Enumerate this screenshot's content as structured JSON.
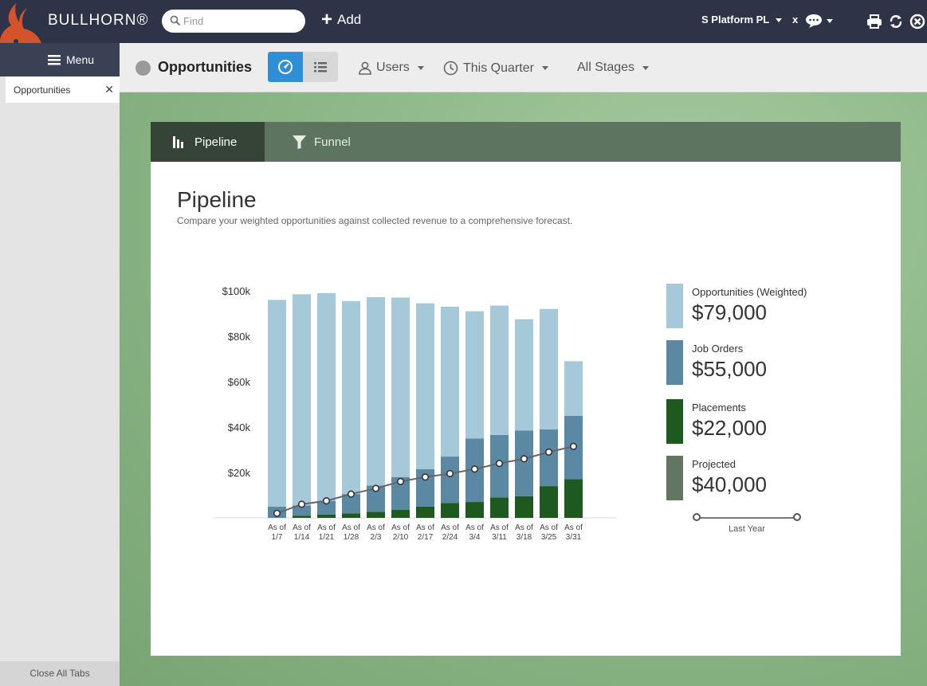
{
  "app": {
    "brand": "BULLHORN®"
  },
  "topbar": {
    "search_placeholder": "Find",
    "add_label": "Add",
    "platform_label": "S Platform PL",
    "x_label": "x"
  },
  "sidebar": {
    "menu_label": "Menu",
    "tabs": [
      {
        "label": "Opportunities"
      }
    ],
    "close_all_label": "Close All Tabs"
  },
  "header": {
    "title": "Opportunities",
    "filters": {
      "users": "Users",
      "period": "This Quarter",
      "stages": "All Stages"
    }
  },
  "card_tabs": [
    {
      "label": "Pipeline"
    },
    {
      "label": "Funnel"
    }
  ],
  "card": {
    "title": "Pipeline",
    "subtitle": "Compare your weighted opportunities against collected revenue to a comprehensive forecast."
  },
  "colors": {
    "opportunities": "#a6c9da",
    "job_orders": "#5b88a3",
    "placements": "#1e5a1f",
    "projected": "#627662",
    "accent": "#2f8fd6"
  },
  "legend": [
    {
      "name": "Opportunities (Weighted)",
      "value": "$79,000",
      "color_key": "opportunities"
    },
    {
      "name": "Job Orders",
      "value": "$55,000",
      "color_key": "job_orders"
    },
    {
      "name": "Placements",
      "value": "$22,000",
      "color_key": "placements"
    },
    {
      "name": "Projected",
      "value": "$40,000",
      "color_key": "projected"
    }
  ],
  "slider": {
    "label": "Last Year"
  },
  "chart_data": {
    "type": "bar",
    "stacked": true,
    "categories": [
      [
        "As of",
        "1/7"
      ],
      [
        "As of",
        "1/14"
      ],
      [
        "As of",
        "1/21"
      ],
      [
        "As of",
        "1/28"
      ],
      [
        "As of",
        "2/3"
      ],
      [
        "As of",
        "2/10"
      ],
      [
        "As of",
        "2/17"
      ],
      [
        "As of",
        "2/24"
      ],
      [
        "As of",
        "3/4"
      ],
      [
        "As of",
        "3/11"
      ],
      [
        "As of",
        "3/18"
      ],
      [
        "As of",
        "3/25"
      ],
      [
        "As of",
        "3/31"
      ]
    ],
    "ylim": [
      0,
      100000
    ],
    "yticks": [
      {
        "value": 20000,
        "label": "$20k"
      },
      {
        "value": 40000,
        "label": "$40k"
      },
      {
        "value": 60000,
        "label": "$60k"
      },
      {
        "value": 80000,
        "label": "$80k"
      },
      {
        "value": 100000,
        "label": "$100k"
      }
    ],
    "series": [
      {
        "name": "Placements",
        "values": [
          0,
          1000,
          1500,
          2000,
          2700,
          3500,
          5000,
          6500,
          7000,
          9000,
          9500,
          14000,
          17000
        ]
      },
      {
        "name": "Job Orders",
        "values": [
          5000,
          4500,
          6000,
          8500,
          11500,
          14500,
          16500,
          20500,
          28000,
          27500,
          29000,
          25000,
          28000
        ]
      },
      {
        "name": "Opportunities (Weighted)",
        "values": [
          91000,
          93000,
          91500,
          85000,
          83000,
          79000,
          73000,
          66000,
          56000,
          57000,
          49000,
          53000,
          24000
        ]
      }
    ],
    "line": {
      "name": "Projected",
      "values": [
        2000,
        6000,
        7500,
        10500,
        13000,
        16000,
        18000,
        19500,
        21500,
        24000,
        26000,
        29000,
        31500
      ]
    }
  }
}
